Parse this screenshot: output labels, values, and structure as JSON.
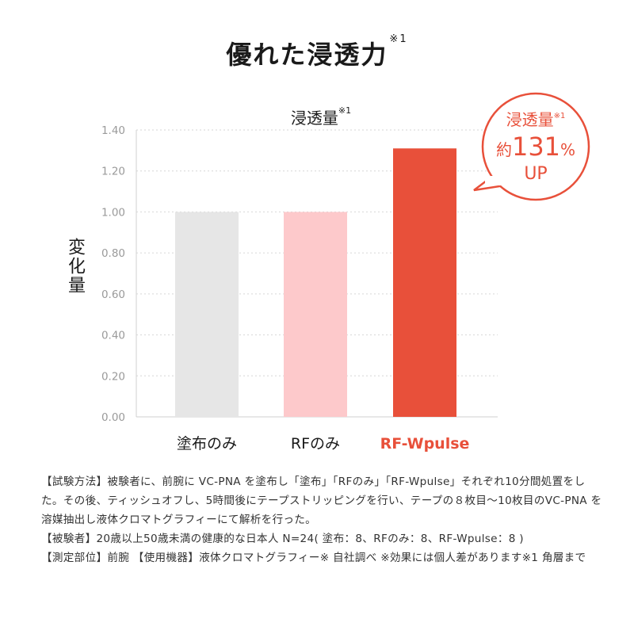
{
  "title": {
    "text": "優れた浸透力",
    "sup": "※1"
  },
  "chart_data": {
    "type": "bar",
    "title": "浸透量",
    "title_sup": "※1",
    "ylabel": "変化量",
    "categories": [
      "塗布のみ",
      "RFのみ",
      "RF-Wpulse"
    ],
    "values": [
      1.0,
      1.0,
      1.31
    ],
    "ylim": [
      0,
      1.4
    ],
    "yticks": [
      "0.00",
      "0.20",
      "0.40",
      "0.60",
      "0.80",
      "1.00",
      "1.20",
      "1.40"
    ],
    "grid": true,
    "colors": [
      "#e6e6e6",
      "#fdc9cb",
      "#e8503a"
    ],
    "label_colors": [
      "#1a1a1a",
      "#1a1a1a",
      "#e8503a"
    ]
  },
  "callout": {
    "line1": "浸透量",
    "line1_sup": "※1",
    "prefix": "約",
    "number": "131",
    "unit": "%",
    "line3": "UP",
    "color": "#e8503a"
  },
  "notes": [
    "【試験方法】被験者に、前腕に VC-PNA を塗布し「塗布」「RFのみ」「RF-Wpulse」それぞれ10分間処置をした。その後、ティッシュオフし、5時間後にテープストリッピングを行い、テープの８枚目〜10枚目のVC-PNA を溶媒抽出し液体クロマトグラフィーにて解析を行った。",
    "【被験者】20歳以上50歳未満の健康的な日本人 N=24( 塗布：8、RFのみ：8、RF-Wpulse：8 )",
    "【測定部位】前腕 【使用機器】液体クロマトグラフィー※ 自社調べ ※効果には個人差があります※1 角層まで"
  ]
}
